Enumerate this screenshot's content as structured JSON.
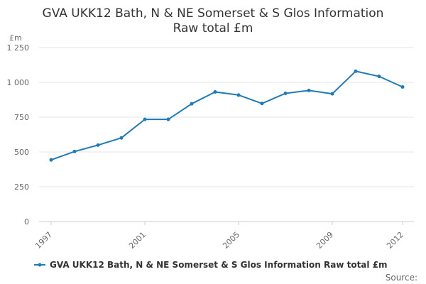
{
  "chart_data": {
    "type": "line",
    "title": "GVA UKK12 Bath, N & NE Somerset & S Glos Information",
    "subtitle": "Raw total £m",
    "ylabel": "£m",
    "xlabel": "",
    "x": [
      1997,
      1998,
      1999,
      2000,
      2001,
      2002,
      2003,
      2004,
      2005,
      2006,
      2007,
      2008,
      2009,
      2010,
      2011,
      2012
    ],
    "series": [
      {
        "name": "GVA UKK12 Bath, N & NE Somerset & S Glos Information Raw total £m",
        "color": "#1f7ab8",
        "values": [
          443,
          503,
          549,
          601,
          734,
          734,
          846,
          931,
          909,
          848,
          921,
          942,
          918,
          1080,
          1043,
          967
        ]
      }
    ],
    "xlim": [
      1997,
      2012
    ],
    "ylim": [
      0,
      1250
    ],
    "yticks": [
      0,
      250,
      500,
      750,
      1000,
      1250
    ],
    "ytick_labels": [
      "0",
      "250",
      "500",
      "750",
      "1 000",
      "1 250"
    ],
    "xticks": [
      1997,
      2001,
      2005,
      2009,
      2012
    ],
    "grid": true,
    "legend": "bottom-center",
    "source_label": "Source:"
  }
}
